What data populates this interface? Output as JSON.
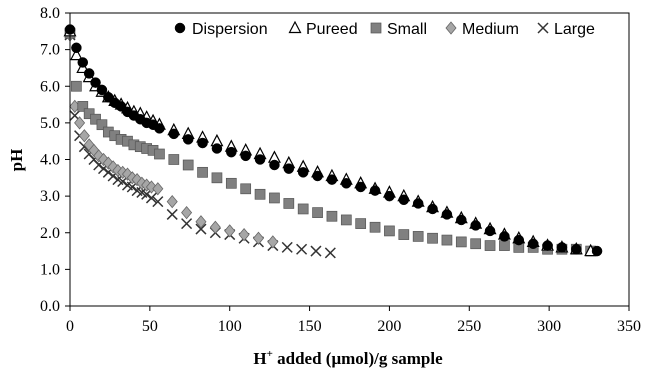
{
  "chart_data": {
    "type": "scatter",
    "xlabel_main": "H",
    "xlabel_sup": "+",
    "xlabel_rest": " added (μmol)/g sample",
    "ylabel": "pH",
    "xlim": [
      0,
      350
    ],
    "ylim": [
      0,
      8
    ],
    "x_ticks": [
      "0",
      "50",
      "100",
      "150",
      "200",
      "250",
      "300",
      "350"
    ],
    "y_ticks": [
      "0.0",
      "1.0",
      "2.0",
      "3.0",
      "4.0",
      "5.0",
      "6.0",
      "7.0",
      "8.0"
    ],
    "grid": false,
    "legend_position": "top-right",
    "series": [
      {
        "name": "Dispersion",
        "marker": "circle",
        "color": "#000000",
        "x": [
          0,
          4,
          8,
          12,
          16,
          20,
          24,
          28,
          32,
          36,
          40,
          44,
          48,
          52,
          56,
          65,
          74,
          83,
          92,
          101,
          110,
          119,
          128,
          137,
          146,
          155,
          164,
          173,
          182,
          191,
          200,
          209,
          218,
          227,
          236,
          245,
          254,
          263,
          272,
          281,
          290,
          299,
          308,
          317,
          330
        ],
        "y": [
          7.55,
          7.05,
          6.65,
          6.35,
          6.1,
          5.9,
          5.7,
          5.55,
          5.45,
          5.3,
          5.2,
          5.1,
          5.0,
          4.95,
          4.85,
          4.7,
          4.55,
          4.45,
          4.3,
          4.2,
          4.1,
          4.0,
          3.85,
          3.75,
          3.65,
          3.55,
          3.45,
          3.35,
          3.25,
          3.15,
          3.0,
          2.9,
          2.8,
          2.65,
          2.5,
          2.35,
          2.2,
          2.05,
          1.9,
          1.8,
          1.7,
          1.65,
          1.6,
          1.55,
          1.5
        ]
      },
      {
        "name": "Pureed",
        "marker": "triangle",
        "color": "#000000",
        "x": [
          0,
          4,
          8,
          12,
          16,
          20,
          24,
          28,
          32,
          36,
          40,
          44,
          48,
          52,
          56,
          65,
          74,
          83,
          92,
          101,
          110,
          119,
          128,
          137,
          146,
          155,
          164,
          173,
          182,
          191,
          200,
          209,
          218,
          227,
          236,
          245,
          254,
          263,
          272,
          281,
          290,
          299,
          308,
          317,
          326
        ],
        "y": [
          7.5,
          6.85,
          6.5,
          6.25,
          6.0,
          5.85,
          5.7,
          5.6,
          5.5,
          5.4,
          5.3,
          5.25,
          5.15,
          5.05,
          4.95,
          4.8,
          4.7,
          4.6,
          4.5,
          4.35,
          4.25,
          4.15,
          4.05,
          3.9,
          3.8,
          3.65,
          3.55,
          3.45,
          3.35,
          3.2,
          3.1,
          3.0,
          2.85,
          2.7,
          2.55,
          2.4,
          2.25,
          2.1,
          1.95,
          1.85,
          1.75,
          1.65,
          1.6,
          1.55,
          1.5
        ]
      },
      {
        "name": "Small",
        "marker": "square",
        "color": "#808080",
        "x": [
          0,
          4,
          8,
          12,
          16,
          20,
          24,
          28,
          32,
          36,
          40,
          44,
          48,
          52,
          56,
          65,
          74,
          83,
          92,
          101,
          110,
          119,
          128,
          137,
          146,
          155,
          164,
          173,
          182,
          191,
          200,
          209,
          218,
          227,
          236,
          245,
          254,
          263,
          272,
          281,
          290,
          299,
          308,
          317,
          326
        ],
        "y": [
          7.45,
          6.0,
          5.45,
          5.25,
          5.1,
          4.95,
          4.75,
          4.65,
          4.55,
          4.5,
          4.4,
          4.35,
          4.3,
          4.25,
          4.15,
          4.0,
          3.85,
          3.65,
          3.5,
          3.35,
          3.2,
          3.05,
          2.95,
          2.8,
          2.65,
          2.55,
          2.45,
          2.35,
          2.25,
          2.15,
          2.05,
          1.95,
          1.9,
          1.85,
          1.8,
          1.75,
          1.7,
          1.65,
          1.65,
          1.6,
          1.6,
          1.55,
          1.55,
          1.55,
          1.5
        ]
      },
      {
        "name": "Medium",
        "marker": "diamond",
        "color": "#a6a6a6",
        "x": [
          0,
          3,
          6,
          9,
          12,
          15,
          18,
          21,
          24,
          27,
          30,
          33,
          36,
          39,
          42,
          45,
          48,
          51,
          55,
          64,
          73,
          82,
          91,
          100,
          109,
          118,
          127
        ],
        "y": [
          7.4,
          5.45,
          5.0,
          4.65,
          4.4,
          4.25,
          4.1,
          4.0,
          3.9,
          3.8,
          3.7,
          3.65,
          3.6,
          3.5,
          3.45,
          3.35,
          3.3,
          3.25,
          3.2,
          2.85,
          2.55,
          2.3,
          2.15,
          2.05,
          1.95,
          1.85,
          1.75
        ]
      },
      {
        "name": "Large",
        "marker": "x",
        "color": "#333333",
        "x": [
          0,
          3,
          6,
          9,
          12,
          15,
          18,
          21,
          24,
          27,
          30,
          33,
          36,
          39,
          42,
          45,
          48,
          51,
          55,
          64,
          73,
          82,
          91,
          100,
          109,
          118,
          127,
          136,
          145,
          154,
          163
        ],
        "y": [
          7.4,
          5.2,
          4.65,
          4.35,
          4.15,
          4.0,
          3.85,
          3.75,
          3.65,
          3.55,
          3.45,
          3.4,
          3.3,
          3.25,
          3.15,
          3.1,
          3.05,
          2.95,
          2.85,
          2.5,
          2.25,
          2.1,
          2.0,
          1.95,
          1.85,
          1.75,
          1.65,
          1.6,
          1.55,
          1.5,
          1.45
        ]
      }
    ]
  }
}
